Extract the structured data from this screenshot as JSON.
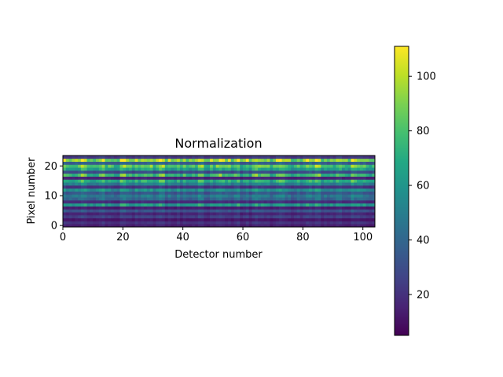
{
  "chart_data": {
    "type": "heatmap",
    "title": "Normalization",
    "xlabel": "Detector number",
    "ylabel": "Pixel number",
    "xlim": [
      0,
      104
    ],
    "ylim": [
      0,
      24
    ],
    "x_ticks": [
      0,
      20,
      40,
      60,
      80,
      100
    ],
    "y_ticks": [
      0,
      10,
      20
    ],
    "colormap": "viridis",
    "colorbar": {
      "min": 5,
      "max": 111,
      "ticks": [
        20,
        40,
        60,
        80,
        100
      ]
    },
    "n_detectors": 104,
    "row_levels": [
      12,
      18,
      10,
      22,
      14,
      28,
      12,
      55,
      16,
      35,
      42,
      30,
      50,
      18,
      45,
      62,
      14,
      68,
      26,
      58,
      72,
      32,
      84,
      20
    ],
    "column_factor_range": [
      0.78,
      1.32
    ],
    "highlight_columns": [
      6,
      13,
      19,
      20,
      32,
      33,
      45,
      46,
      52,
      58,
      64,
      72,
      84,
      85,
      96
    ],
    "grid": false,
    "legend": "colorbar-right"
  }
}
